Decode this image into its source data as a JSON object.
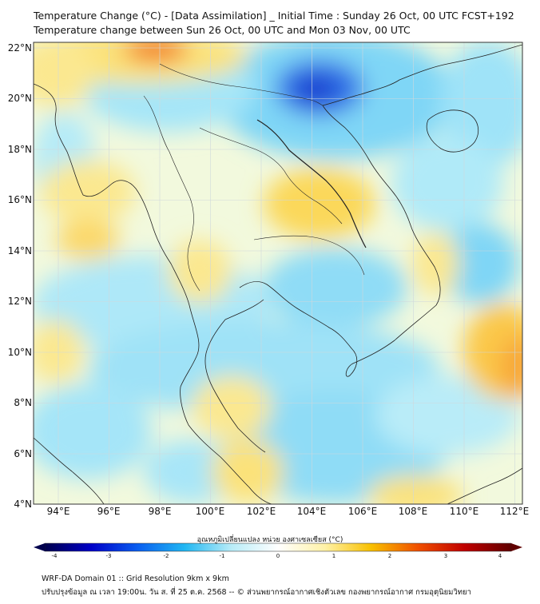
{
  "header": {
    "title_line1": "Temperature Change (°C) - [Data Assimilation] _ Initial Time : Sunday 26 Oct, 00 UTC FCST+192",
    "title_line2": "Temperature change between Sun 26 Oct, 00 UTC and Mon 03 Nov, 00 UTC"
  },
  "map": {
    "lat_labels": [
      "22°N",
      "20°N",
      "18°N",
      "16°N",
      "14°N",
      "12°N",
      "10°N",
      "8°N",
      "6°N",
      "4°N"
    ],
    "lon_labels": [
      "94°E",
      "96°E",
      "98°E",
      "100°E",
      "102°E",
      "104°E",
      "106°E",
      "108°E",
      "110°E",
      "112°E"
    ]
  },
  "colorbar": {
    "title": "อุณหภูมิเปลี่ยนแปลง หน่วย องศาเซลเซียส (°C)",
    "ticks": [
      "-4",
      "-3",
      "-2",
      "-1",
      "0",
      "1",
      "2",
      "3",
      "4"
    ],
    "colors": [
      "#00004d",
      "#0000c8",
      "#0a5ff0",
      "#21b7f2",
      "#b8ecf8",
      "#ffffff",
      "#fff2a8",
      "#f8c000",
      "#f05000",
      "#c00000",
      "#600000"
    ]
  },
  "footer": {
    "line1": "WRF-DA Domain 01 :: Grid Resolution 9km x 9km",
    "line2": "ปรับปรุงข้อมูล ณ เวลา 19:00น. วัน ส. ที่ 25 ต.ค. 2568 -- © ส่วนพยากรณ์อากาศเชิงตัวเลข กองพยากรณ์อากาศ กรมอุตุนิยมวิทยา"
  }
}
